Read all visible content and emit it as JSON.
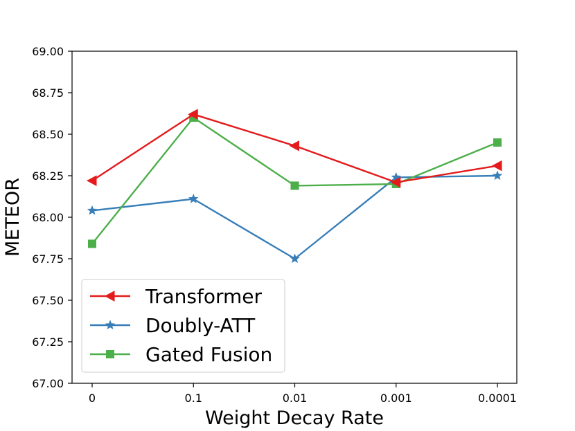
{
  "chart_data": {
    "type": "line",
    "title": "",
    "xlabel": "Weight Decay Rate",
    "ylabel": "METEOR",
    "categories": [
      "0",
      "0.1",
      "0.01",
      "0.001",
      "0.0001"
    ],
    "ylim": [
      67.0,
      69.0
    ],
    "yticks": [
      67.0,
      67.25,
      67.5,
      67.75,
      68.0,
      68.25,
      68.5,
      68.75,
      69.0
    ],
    "ytick_labels": [
      "67.00",
      "67.25",
      "67.50",
      "67.75",
      "68.00",
      "68.25",
      "68.50",
      "68.75",
      "69.00"
    ],
    "grid": false,
    "legend_position": "lower-left",
    "series": [
      {
        "name": "Transformer",
        "marker": "triangle-left",
        "color": "#e41a1c",
        "values": [
          68.22,
          68.62,
          68.43,
          68.21,
          68.31
        ]
      },
      {
        "name": "Doubly-ATT",
        "marker": "star",
        "color": "#377eb8",
        "values": [
          68.04,
          68.11,
          67.75,
          68.24,
          68.25
        ]
      },
      {
        "name": "Gated Fusion",
        "marker": "square",
        "color": "#4daf4a",
        "values": [
          67.84,
          68.6,
          68.19,
          68.2,
          68.45
        ]
      }
    ]
  }
}
